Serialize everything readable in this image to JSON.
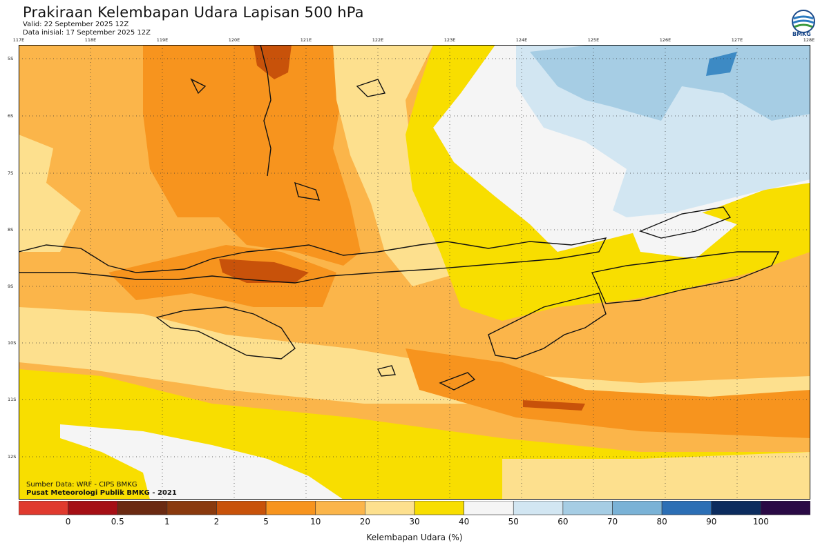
{
  "header": {
    "title": "Prakiraan Kelembapan Udara Lapisan 500 hPa",
    "valid": "Valid: 22 September 2025 12Z",
    "initial": "Data inisial: 17 September 2025 12Z",
    "logo_text": "BMKG"
  },
  "axes": {
    "lon_labels": [
      "117E",
      "118E",
      "119E",
      "120E",
      "121E",
      "122E",
      "123E",
      "124E",
      "125E",
      "126E",
      "127E",
      "128E"
    ],
    "lat_labels": [
      "5S",
      "6S",
      "7S",
      "8S",
      "9S",
      "10S",
      "11S",
      "12S"
    ]
  },
  "credits": {
    "source": "Sumber Data: WRF - CIPS BMKG",
    "center": "Pusat Meteorologi Publik BMKG - 2021"
  },
  "legend": {
    "ticks": [
      "0",
      "0.5",
      "1",
      "2",
      "5",
      "10",
      "20",
      "30",
      "40",
      "50",
      "60",
      "70",
      "80",
      "90",
      "100"
    ],
    "unit": "Kelembapan Udara (%)",
    "colors": [
      "#e03a2e",
      "#a50f15",
      "#6b2a12",
      "#8a3a0e",
      "#c8520a",
      "#f7941e",
      "#fbb54a",
      "#fde08e",
      "#f8de00",
      "#f5f5f5",
      "#d2e6f2",
      "#a6cde4",
      "#7ab2d6",
      "#2c6fb5",
      "#0c2c5e",
      "#2a0a45"
    ],
    "accent": "#000000"
  }
}
